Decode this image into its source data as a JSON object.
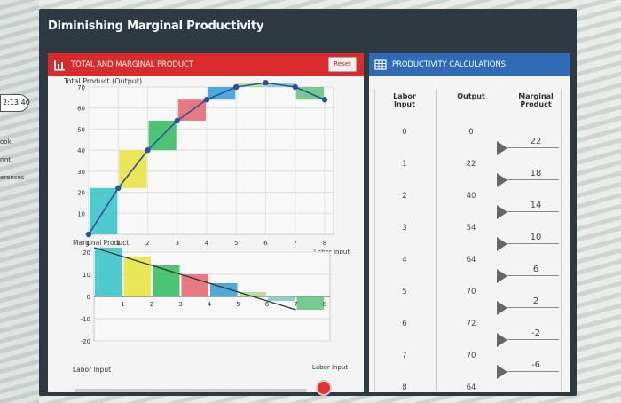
{
  "window": {
    "title": "Diminishing Marginal Productivity"
  },
  "sidebar": {
    "clock": "2:13:40",
    "items": [
      "ook",
      "rint",
      "erences"
    ]
  },
  "left_panel": {
    "header": "TOTAL AND MARGINAL PRODUCT",
    "header_icon": "bar-chart-icon",
    "reset_label": "Reset",
    "slider_label": "Labor Input",
    "slider_value": 8
  },
  "right_panel": {
    "header": "PRODUCTIVITY CALCULATIONS",
    "header_icon": "table-icon",
    "columns": [
      "Labor\nInput",
      "Output",
      "Marginal\nProduct"
    ],
    "labor": [
      "0",
      "1",
      "2",
      "3",
      "4",
      "5",
      "6",
      "7",
      "8"
    ],
    "output": [
      "0",
      "22",
      "40",
      "54",
      "64",
      "70",
      "72",
      "70",
      "64"
    ],
    "marginal": [
      "22",
      "18",
      "14",
      "10",
      "6",
      "2",
      "-2",
      "-6"
    ]
  },
  "colors": {
    "header_red": "#d92b2b",
    "header_blue": "#2f6bb7",
    "point": "#2d4fa0",
    "knob": "#e43333"
  },
  "chart_data": [
    {
      "type": "line",
      "ylabel": "Total Product (Output)",
      "xlabel": "Labor Input",
      "x": [
        0,
        1,
        2,
        3,
        4,
        5,
        6,
        7,
        8
      ],
      "values": [
        0,
        22,
        40,
        54,
        64,
        70,
        72,
        70,
        64
      ],
      "ylim": [
        0,
        70
      ],
      "yticks": [
        10,
        20,
        30,
        40,
        50,
        60,
        70
      ],
      "xticks": [
        0,
        1,
        2,
        3,
        4,
        5,
        6,
        7,
        8
      ]
    },
    {
      "type": "bar",
      "ylabel": "Marginal Product",
      "xlabel": "Labor Input",
      "x": [
        1,
        2,
        3,
        4,
        5,
        6,
        7,
        8
      ],
      "values": [
        22,
        18,
        14,
        10,
        6,
        2,
        -2,
        -6
      ],
      "ylim": [
        -20,
        20
      ],
      "yticks": [
        20,
        10,
        0,
        -10,
        -20
      ],
      "xticks": [
        1,
        2,
        3,
        4,
        5,
        6,
        7,
        8
      ]
    }
  ]
}
